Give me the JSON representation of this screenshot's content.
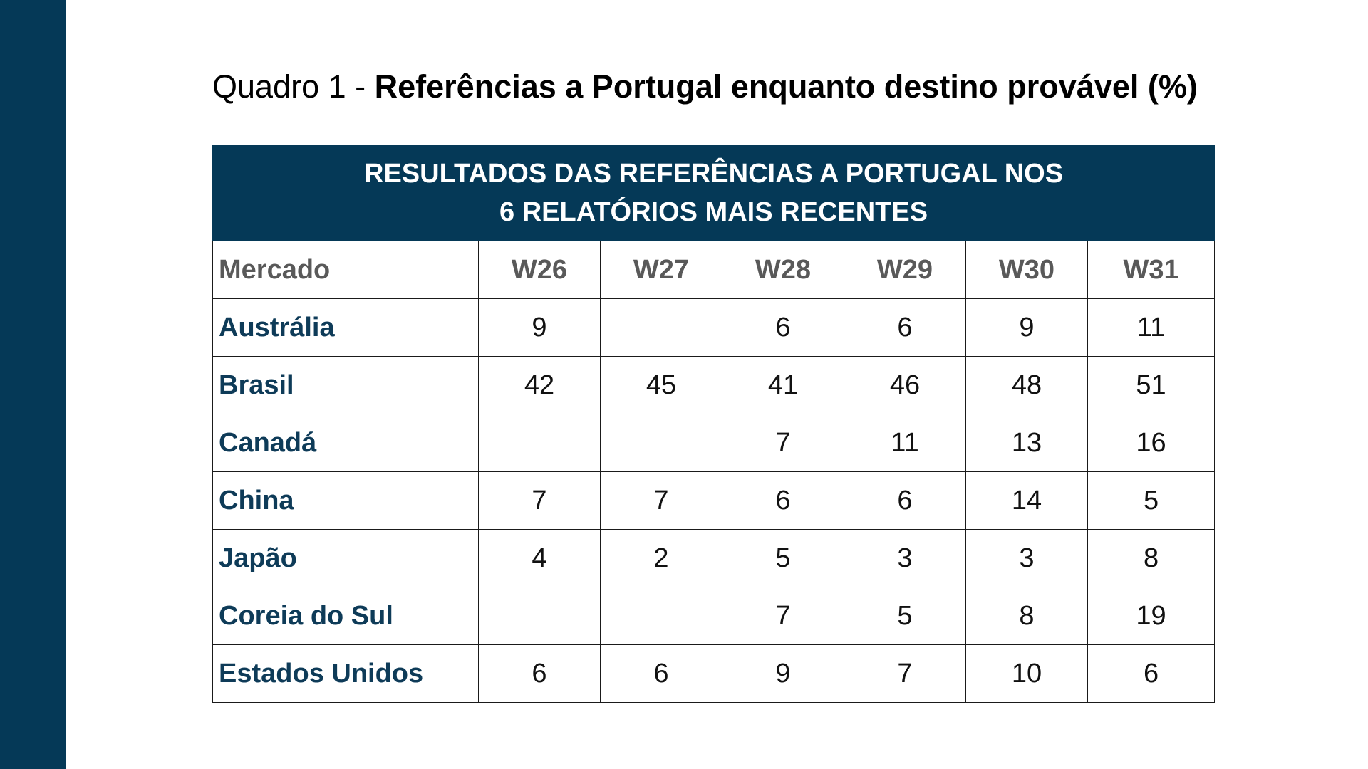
{
  "heading": {
    "prefix": "Quadro 1 - ",
    "title": "Referências a Portugal enquanto destino provável (%)"
  },
  "table": {
    "banner_line1": "RESULTADOS DAS REFERÊNCIAS A PORTUGAL NOS",
    "banner_line2": "6 RELATÓRIOS MAIS RECENTES",
    "columns": [
      "Mercado",
      "W26",
      "W27",
      "W28",
      "W29",
      "W30",
      "W31"
    ],
    "rows": [
      {
        "market": "Austrália",
        "values": [
          "9",
          "",
          "6",
          "6",
          "9",
          "11"
        ]
      },
      {
        "market": "Brasil",
        "values": [
          "42",
          "45",
          "41",
          "46",
          "48",
          "51"
        ]
      },
      {
        "market": "Canadá",
        "values": [
          "",
          "",
          "7",
          "11",
          "13",
          "16"
        ]
      },
      {
        "market": "China",
        "values": [
          "7",
          "7",
          "6",
          "6",
          "14",
          "5"
        ]
      },
      {
        "market": "Japão",
        "values": [
          "4",
          "2",
          "5",
          "3",
          "3",
          "8"
        ]
      },
      {
        "market": "Coreia do Sul",
        "values": [
          "",
          "",
          "7",
          "5",
          "8",
          "19"
        ]
      },
      {
        "market": "Estados Unidos",
        "values": [
          "6",
          "6",
          "9",
          "7",
          "10",
          "6"
        ]
      }
    ]
  },
  "colors": {
    "sidebar": "#053957",
    "banner": "#053957",
    "market_text": "#0e3b58",
    "column_header_text": "#595959"
  }
}
